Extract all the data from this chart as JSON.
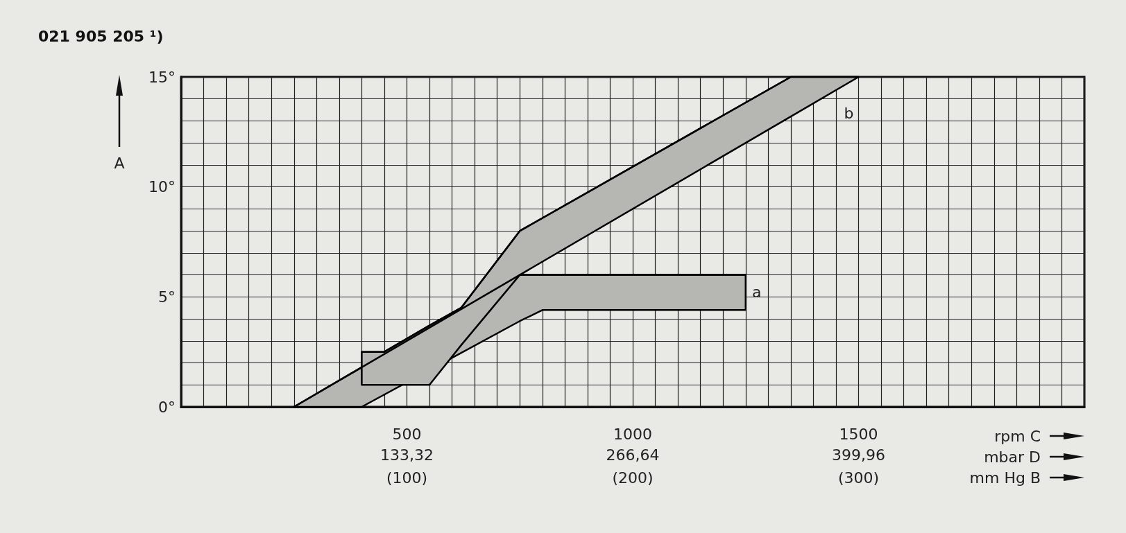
{
  "chart_data": {
    "type": "line",
    "title": "021 905 205 ¹)",
    "xlabel": "rpm C",
    "x2label": "mbar D",
    "ylabel": "A",
    "series": [
      {
        "color": "#000000",
        "x": [
          250,
          400,
          750,
          800,
          1250
        ],
        "values": [
          0,
          1.8,
          6,
          6,
          6
        ],
        "upper": [
          0,
          1.8,
          6,
          6,
          6
        ],
        "lower": [
          0,
          0,
          3.9,
          4.4,
          4.4
        ]
      },
      {
        "color": "#000000",
        "x": [
          400,
          450,
          550,
          620,
          750,
          1350,
          1500
        ],
        "values": [
          2.5,
          2.5,
          3.7,
          4.5,
          8,
          15,
          15
        ],
        "upper": [
          2.5,
          2.5,
          3.7,
          4.5,
          8,
          15,
          15
        ],
        "lower": [
          1,
          1,
          1,
          2.8,
          6,
          13.2,
          15
        ]
      }
    ],
    "annotations": [
      "a",
      "b",
      "(100)",
      "(200)",
      "(300)",
      "mm Hg B"
    ],
    "xlim": [
      0,
      2000
    ],
    "ylim": [
      0,
      15
    ],
    "xticks": [
      {
        "value": 0,
        "label": null
      },
      {
        "value": 50,
        "label": null
      },
      {
        "value": 100,
        "label": null
      },
      {
        "value": 150,
        "label": null
      },
      {
        "value": 200,
        "label": null
      },
      {
        "value": 250,
        "label": null
      },
      {
        "value": 300,
        "label": null
      },
      {
        "value": 350,
        "label": null
      },
      {
        "value": 400,
        "label": null
      },
      {
        "value": 450,
        "label": null
      },
      500,
      {
        "value": 550,
        "label": null
      },
      {
        "value": 600,
        "label": null
      },
      {
        "value": 650,
        "label": null
      },
      {
        "value": 700,
        "label": null
      },
      {
        "value": 750,
        "label": null
      },
      {
        "value": 800,
        "label": null
      },
      {
        "value": 850,
        "label": null
      },
      {
        "value": 900,
        "label": null
      },
      {
        "value": 950,
        "label": null
      },
      1000,
      {
        "value": 1050,
        "label": null
      },
      {
        "value": 1100,
        "label": null
      },
      {
        "value": 1150,
        "label": null
      },
      {
        "value": 1200,
        "label": null
      },
      {
        "value": 1250,
        "label": null
      },
      {
        "value": 1300,
        "label": null
      },
      {
        "value": 1350,
        "label": null
      },
      {
        "value": 1400,
        "label": null
      },
      {
        "value": 1450,
        "label": null
      },
      1500,
      {
        "value": 1550,
        "label": null
      },
      {
        "value": 1600,
        "label": null
      },
      {
        "value": 1650,
        "label": null
      },
      {
        "value": 1700,
        "label": null
      },
      {
        "value": 1750,
        "label": null
      },
      {
        "value": 1800,
        "label": null
      },
      {
        "value": 1850,
        "label": null
      },
      {
        "value": 1900,
        "label": null
      },
      {
        "value": 1950,
        "label": null
      },
      {
        "value": 2000,
        "label": null
      }
    ],
    "x2lim": [
      0,
      533.28
    ],
    "x2ticks": [
      {
        "value": 133.32,
        "label": "133,32"
      },
      {
        "value": 266.64,
        "label": "266,64"
      },
      {
        "value": 399.96,
        "label": "399,96"
      }
    ],
    "yticks": [
      {
        "value": 0,
        "label": "0°"
      },
      {
        "value": 1,
        "label": null
      },
      {
        "value": 2,
        "label": null
      },
      {
        "value": 3,
        "label": null
      },
      {
        "value": 4,
        "label": null
      },
      {
        "value": 5,
        "label": "5°"
      },
      {
        "value": 6,
        "label": null
      },
      {
        "value": 7,
        "label": null
      },
      {
        "value": 8,
        "label": null
      },
      {
        "value": 9,
        "label": null
      },
      {
        "value": 10,
        "label": "10°"
      },
      {
        "value": 11,
        "label": null
      },
      {
        "value": 12,
        "label": null
      },
      {
        "value": 13,
        "label": null
      },
      {
        "value": 14,
        "label": null
      },
      {
        "value": 15,
        "label": "15°"
      }
    ],
    "grid": true,
    "marker": "none",
    "line_style": "solid"
  }
}
